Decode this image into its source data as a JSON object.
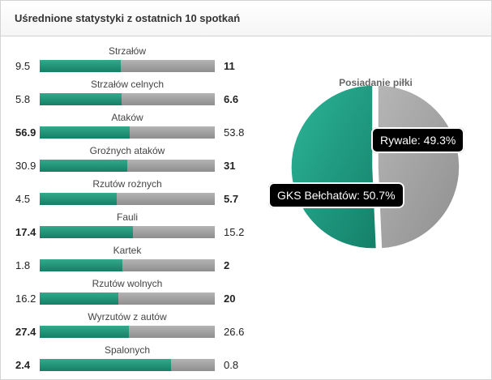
{
  "header": {
    "title": "Uśrednione statystyki z ostatnich 10 spotkań"
  },
  "stats": [
    {
      "label": "Strzałów",
      "home": "9.5",
      "away": "11",
      "home_value": 9.5,
      "away_value": 11,
      "bold": "away"
    },
    {
      "label": "Strzałów celnych",
      "home": "5.8",
      "away": "6.6",
      "home_value": 5.8,
      "away_value": 6.6,
      "bold": "away"
    },
    {
      "label": "Ataków",
      "home": "56.9",
      "away": "53.8",
      "home_value": 56.9,
      "away_value": 53.8,
      "bold": "home"
    },
    {
      "label": "Groźnych ataków",
      "home": "30.9",
      "away": "31",
      "home_value": 30.9,
      "away_value": 31,
      "bold": "away"
    },
    {
      "label": "Rzutów rożnych",
      "home": "4.5",
      "away": "5.7",
      "home_value": 4.5,
      "away_value": 5.7,
      "bold": "away"
    },
    {
      "label": "Fauli",
      "home": "17.4",
      "away": "15.2",
      "home_value": 17.4,
      "away_value": 15.2,
      "bold": "home"
    },
    {
      "label": "Kartek",
      "home": "1.8",
      "away": "2",
      "home_value": 1.8,
      "away_value": 2,
      "bold": "away"
    },
    {
      "label": "Rzutów wolnych",
      "home": "16.2",
      "away": "20",
      "home_value": 16.2,
      "away_value": 20,
      "bold": "away"
    },
    {
      "label": "Wyrzutów z autów",
      "home": "27.4",
      "away": "26.6",
      "home_value": 27.4,
      "away_value": 26.6,
      "bold": "home"
    },
    {
      "label": "Spalonych",
      "home": "2.4",
      "away": "0.8",
      "home_value": 2.4,
      "away_value": 0.8,
      "bold": "home"
    }
  ],
  "colors": {
    "home": "#1f9a7a",
    "away": "#a3a3a3"
  },
  "chart_data": {
    "type": "pie",
    "title": "Posiadanie piłki",
    "slices": [
      {
        "name": "GKS Bełchatów",
        "value": 50.7,
        "label": "GKS Bełchatów: 50.7%",
        "color": "#1f9a7a"
      },
      {
        "name": "Rywale",
        "value": 49.3,
        "label": "Rywale: 49.3%",
        "color": "#a3a3a3"
      }
    ]
  }
}
